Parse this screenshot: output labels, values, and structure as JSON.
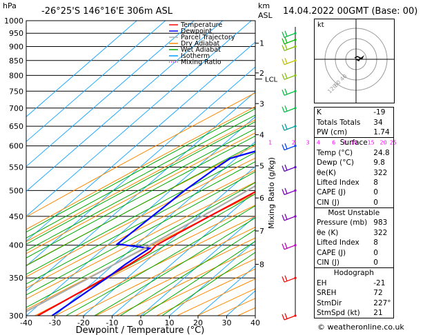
{
  "header": {
    "hpa": "hPa",
    "location": "-26°25'S 146°16'E 306m ASL",
    "km": "km",
    "asl": "ASL",
    "datetime": "14.04.2022 00GMT (Base: 00)"
  },
  "copyright": "© weatheronline.co.uk",
  "chart_data": {
    "type": "line",
    "subtype": "skew-T log-P sounding",
    "xlabel": "Dewpoint / Temperature (°C)",
    "ylabel": "Mixing Ratio (g/kg)",
    "xlim": [
      -40,
      40
    ],
    "ylim_hpa": [
      1000,
      300
    ],
    "x_ticks": [
      "-40",
      "-30",
      "-20",
      "-10",
      "0",
      "10",
      "20",
      "30",
      "40"
    ],
    "pressure_levels": [
      300,
      350,
      400,
      450,
      500,
      550,
      600,
      650,
      700,
      750,
      800,
      850,
      900,
      950,
      1000
    ],
    "km_ticks": [
      {
        "km": "1",
        "p": 912
      },
      {
        "km": "2",
        "p": 808
      },
      {
        "km": "3",
        "p": 713
      },
      {
        "km": "4",
        "p": 628
      },
      {
        "km": "5",
        "p": 553
      },
      {
        "km": "6",
        "p": 485
      },
      {
        "km": "7",
        "p": 424
      },
      {
        "km": "8",
        "p": 370
      }
    ],
    "lcl": {
      "label": "LCL",
      "p": 788
    },
    "mixing_ratio_labels": [
      "1",
      "2",
      "3",
      "4",
      "6",
      "8",
      "10",
      "15",
      "20",
      "25"
    ],
    "mixing_ratio_label_p": 600,
    "legend": [
      {
        "name": "Temperature",
        "color": "#ff0000",
        "style": "solid"
      },
      {
        "name": "Dewpoint",
        "color": "#0000ff",
        "style": "solid"
      },
      {
        "name": "Parcel Trajectory",
        "color": "#aaaaaa",
        "style": "solid"
      },
      {
        "name": "Dry Adiabat",
        "color": "#ff8800",
        "style": "solid"
      },
      {
        "name": "Wet Adiabat",
        "color": "#00aa00",
        "style": "solid"
      },
      {
        "name": "Isotherm",
        "color": "#00a0ff",
        "style": "solid"
      },
      {
        "name": "Mixing Ratio",
        "color": "#ff00ff",
        "style": "dotted"
      }
    ],
    "series": [
      {
        "name": "Temperature",
        "color": "#ff0000",
        "points": [
          [
            1000,
            24.8
          ],
          [
            975,
            22.8
          ],
          [
            950,
            20.2
          ],
          [
            925,
            18.4
          ],
          [
            900,
            16.6
          ],
          [
            850,
            13.0
          ],
          [
            800,
            9.5
          ],
          [
            750,
            6.0
          ],
          [
            720,
            4.5
          ],
          [
            700,
            6.2
          ],
          [
            650,
            0.5
          ],
          [
            600,
            -2.5
          ],
          [
            585,
            -3.5
          ],
          [
            560,
            -1.5
          ],
          [
            550,
            -3
          ],
          [
            500,
            -9.5
          ],
          [
            450,
            -16
          ],
          [
            400,
            -23
          ],
          [
            390,
            -22.5
          ],
          [
            370,
            -24.5
          ],
          [
            350,
            -27.5
          ],
          [
            300,
            -36
          ]
        ]
      },
      {
        "name": "Dewpoint",
        "color": "#0000ff",
        "points": [
          [
            1000,
            9.8
          ],
          [
            985,
            9.2
          ],
          [
            965,
            8.0
          ],
          [
            950,
            8.2
          ],
          [
            935,
            7.5
          ],
          [
            925,
            4.0
          ],
          [
            900,
            3.5
          ],
          [
            850,
            2.5
          ],
          [
            800,
            0.5
          ],
          [
            750,
            -0.5
          ],
          [
            720,
            -1.0
          ],
          [
            710,
            -3
          ],
          [
            700,
            -40
          ],
          [
            620,
            -15
          ],
          [
            570,
            -32
          ],
          [
            550,
            -33
          ],
          [
            500,
            -35
          ],
          [
            450,
            -36
          ],
          [
            402,
            -37
          ],
          [
            395,
            -24
          ],
          [
            370,
            -26
          ],
          [
            350,
            -27
          ],
          [
            300,
            -31
          ]
        ]
      },
      {
        "name": "Parcel Trajectory",
        "color": "#aaaaaa",
        "points": [
          [
            1000,
            24.8
          ],
          [
            950,
            19.6
          ],
          [
            900,
            14.2
          ],
          [
            850,
            11.5
          ],
          [
            800,
            8.0
          ],
          [
            788,
            7.4
          ],
          [
            750,
            5.2
          ],
          [
            700,
            2.3
          ],
          [
            650,
            -0.9
          ],
          [
            600,
            -4.4
          ],
          [
            550,
            -8.4
          ],
          [
            500,
            -13.1
          ],
          [
            450,
            -18.6
          ],
          [
            400,
            -25.2
          ],
          [
            350,
            -33.2
          ],
          [
            300,
            -42.8
          ]
        ]
      }
    ],
    "winds": [
      {
        "p": 300,
        "color": "#ff0000"
      },
      {
        "p": 350,
        "color": "#ff0000"
      },
      {
        "p": 400,
        "color": "#c000c0"
      },
      {
        "p": 450,
        "color": "#8000c0"
      },
      {
        "p": 500,
        "color": "#8000c0"
      },
      {
        "p": 550,
        "color": "#6000c0"
      },
      {
        "p": 600,
        "color": "#0040ff"
      },
      {
        "p": 650,
        "color": "#00a0a0"
      },
      {
        "p": 700,
        "color": "#00c040"
      },
      {
        "p": 750,
        "color": "#00c040"
      },
      {
        "p": 800,
        "color": "#80c000"
      },
      {
        "p": 850,
        "color": "#c0c000"
      },
      {
        "p": 900,
        "color": "#80c000"
      },
      {
        "p": 925,
        "color": "#00c000"
      },
      {
        "p": 950,
        "color": "#00c040"
      }
    ],
    "hodograph": {
      "label": "kt",
      "ring_labels": [
        "40",
        "60",
        "120"
      ]
    }
  },
  "indices": {
    "k_label": "K",
    "k": "-19",
    "tt_label": "Totals Totals",
    "tt": "34",
    "pw_label": "PW (cm)",
    "pw": "1.74",
    "surface_title": "Surface",
    "s_temp_label": "Temp (°C)",
    "s_temp": "24.8",
    "s_dewp_label": "Dewp (°C)",
    "s_dewp": "9.8",
    "s_theta_label": "θe(K)",
    "s_theta": "322",
    "s_li_label": "Lifted Index",
    "s_li": "8",
    "s_cape_label": "CAPE (J)",
    "s_cape": "0",
    "s_cin_label": "CIN (J)",
    "s_cin": "0",
    "mu_title": "Most Unstable",
    "mu_p_label": "Pressure (mb)",
    "mu_p": "983",
    "mu_theta_label": "θe (K)",
    "mu_theta": "322",
    "mu_li_label": "Lifted Index",
    "mu_li": "8",
    "mu_cape_label": "CAPE (J)",
    "mu_cape": "0",
    "mu_cin_label": "CIN (J)",
    "mu_cin": "0",
    "hodo_title": "Hodograph",
    "eh_label": "EH",
    "eh": "-21",
    "sreh_label": "SREH",
    "sreh": "72",
    "stmdir_label": "StmDir",
    "stmdir": "227°",
    "stmspd_label": "StmSpd (kt)",
    "stmspd": "21"
  }
}
